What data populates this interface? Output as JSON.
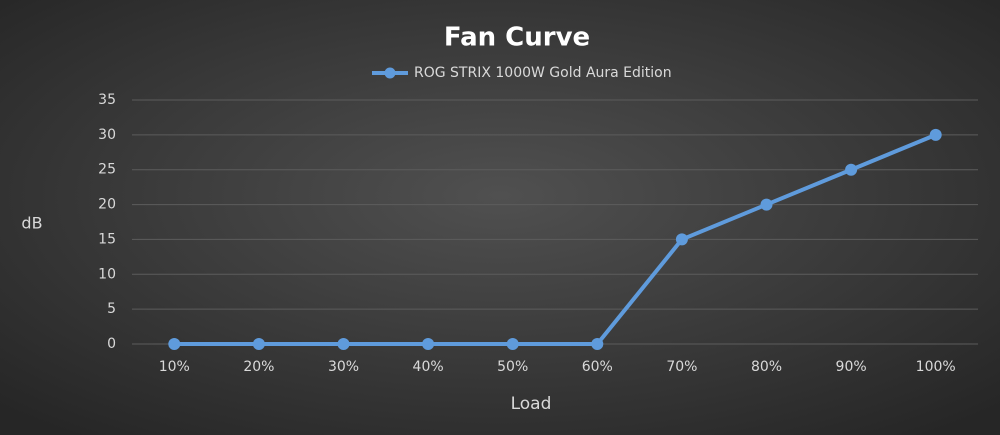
{
  "chart_data": {
    "type": "line",
    "title": "Fan Curve",
    "x_label": "Load",
    "y_label": "dB",
    "categories": [
      "10%",
      "20%",
      "30%",
      "40%",
      "50%",
      "60%",
      "70%",
      "80%",
      "90%",
      "100%"
    ],
    "series": [
      {
        "name": "ROG STRIX 1000W Gold Aura Edition",
        "color": "#5f9bdc",
        "values": [
          0,
          0,
          0,
          0,
          0,
          0,
          15,
          20,
          25,
          30
        ]
      }
    ],
    "ylim": [
      0,
      35
    ],
    "yticks": [
      0,
      5,
      10,
      15,
      20,
      25,
      30,
      35
    ],
    "grid": true,
    "legend": "top"
  }
}
